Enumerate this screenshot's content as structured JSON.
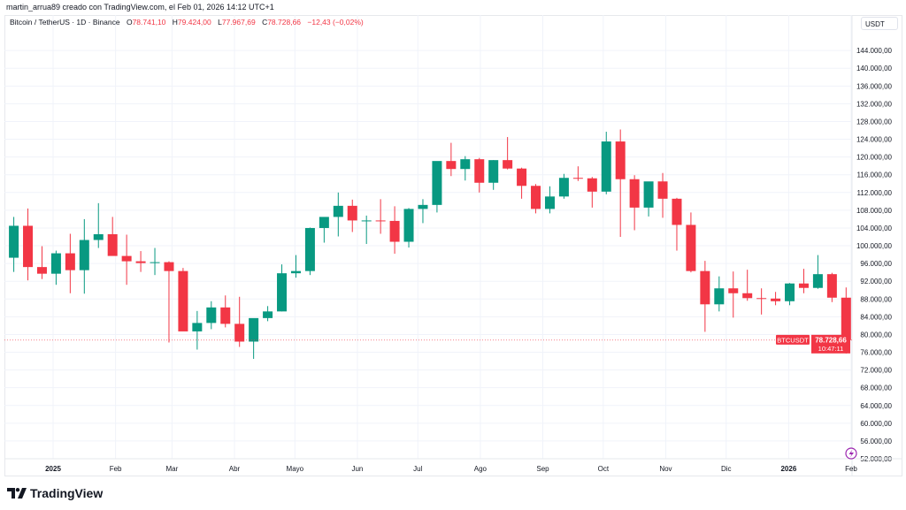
{
  "watermark": "martin_arrua89 creado con TradingView.com, el Feb 01, 2026 14:12 UTC+1",
  "legend": {
    "symbol": "Bitcoin / TetherUS · 1D · Binance",
    "o_label": "O",
    "o": "78.741,10",
    "h_label": "H",
    "h": "79.424,00",
    "l_label": "L",
    "l": "77.967,69",
    "c_label": "C",
    "c": "78.728,66",
    "change": "−12,43 (−0,02%)"
  },
  "price_axis": {
    "unit": "USDT"
  },
  "current": {
    "symbol": "BTCUSDT",
    "price_label": "78.728,66",
    "countdown": "10:47:11",
    "value": 78728.66
  },
  "brand": "TradingView",
  "colors": {
    "up": "#089981",
    "down": "#f23645",
    "grid": "#f0f3fa",
    "text": "#131722",
    "lightning": "#9c27b0"
  },
  "chart_data": {
    "type": "candlestick",
    "interval_shown": "1D",
    "ylim": [
      52000,
      152000
    ],
    "xlim": [
      "2024-12-07",
      "2026-02-06"
    ],
    "grid": true,
    "y_ticks": [
      52000,
      56000,
      60000,
      64000,
      68000,
      72000,
      76000,
      80000,
      84000,
      88000,
      92000,
      96000,
      100000,
      104000,
      108000,
      112000,
      116000,
      120000,
      124000,
      128000,
      132000,
      136000,
      140000,
      144000
    ],
    "y_tick_labels": [
      "52.000,00",
      "56.000,00",
      "60.000,00",
      "64.000,00",
      "68.000,00",
      "72.000,00",
      "76.000,00",
      "80.000,00",
      "84.000,00",
      "88.000,00",
      "92.000,00",
      "96.000,00",
      "100.000,00",
      "104.000,00",
      "108.000,00",
      "112.000,00",
      "116.000,00",
      "120.000,00",
      "124.000,00",
      "128.000,00",
      "132.000,00",
      "136.000,00",
      "140.000,00",
      "144.000,00"
    ],
    "x_ticks": [
      {
        "date": "2025-01-01",
        "label": "2025",
        "bold": true
      },
      {
        "date": "2025-02-01",
        "label": "Feb"
      },
      {
        "date": "2025-03-01",
        "label": "Mar"
      },
      {
        "date": "2025-04-01",
        "label": "Abr"
      },
      {
        "date": "2025-05-01",
        "label": "Mayo"
      },
      {
        "date": "2025-06-01",
        "label": "Jun"
      },
      {
        "date": "2025-07-01",
        "label": "Jul"
      },
      {
        "date": "2025-08-01",
        "label": "Ago"
      },
      {
        "date": "2025-09-01",
        "label": "Sep"
      },
      {
        "date": "2025-10-01",
        "label": "Oct"
      },
      {
        "date": "2025-11-01",
        "label": "Nov"
      },
      {
        "date": "2025-12-01",
        "label": "Dic"
      },
      {
        "date": "2026-01-01",
        "label": "2026",
        "bold": true
      },
      {
        "date": "2026-02-01",
        "label": "Feb"
      }
    ],
    "candles_note_fields": [
      "week_start",
      "open",
      "high",
      "low",
      "close"
    ],
    "candles": [
      [
        "2024-12-09",
        97300,
        106500,
        94100,
        104500
      ],
      [
        "2024-12-16",
        104500,
        108400,
        92200,
        95200
      ],
      [
        "2024-12-23",
        95200,
        99900,
        92500,
        93700
      ],
      [
        "2024-12-30",
        93700,
        98900,
        91200,
        98300
      ],
      [
        "2025-01-06",
        98300,
        102700,
        89300,
        94500
      ],
      [
        "2025-01-13",
        94500,
        106000,
        89200,
        101300
      ],
      [
        "2025-01-20",
        101300,
        109600,
        99500,
        102600
      ],
      [
        "2025-01-27",
        102600,
        106500,
        97800,
        97700
      ],
      [
        "2025-02-03",
        97700,
        102500,
        91200,
        96500
      ],
      [
        "2025-02-10",
        96500,
        98800,
        94100,
        96100
      ],
      [
        "2025-02-17",
        96100,
        99500,
        93400,
        96300
      ],
      [
        "2025-02-24",
        96300,
        96500,
        78200,
        94300
      ],
      [
        "2025-03-03",
        94300,
        95000,
        81500,
        80700
      ],
      [
        "2025-03-10",
        80700,
        85300,
        76600,
        82600
      ],
      [
        "2025-03-17",
        82600,
        87500,
        81200,
        86100
      ],
      [
        "2025-03-24",
        86100,
        88800,
        81600,
        82400
      ],
      [
        "2025-03-31",
        82400,
        88500,
        77200,
        78400
      ],
      [
        "2025-04-07",
        78400,
        83600,
        74500,
        83700
      ],
      [
        "2025-04-14",
        83700,
        86400,
        83000,
        85200
      ],
      [
        "2025-04-21",
        85200,
        95800,
        85200,
        93800
      ],
      [
        "2025-04-28",
        93800,
        97900,
        92800,
        94300
      ],
      [
        "2025-05-05",
        94300,
        104100,
        93400,
        104000
      ],
      [
        "2025-05-12",
        104000,
        105800,
        100700,
        106500
      ],
      [
        "2025-05-19",
        106500,
        112000,
        102100,
        109000
      ],
      [
        "2025-05-26",
        109000,
        110400,
        103100,
        105700
      ],
      [
        "2025-06-02",
        105700,
        106800,
        100400,
        105700
      ],
      [
        "2025-06-09",
        105700,
        110500,
        102700,
        105600
      ],
      [
        "2025-06-16",
        105600,
        108900,
        98200,
        100900
      ],
      [
        "2025-06-23",
        100900,
        108500,
        99600,
        108300
      ],
      [
        "2025-06-30",
        108300,
        110500,
        105100,
        109200
      ],
      [
        "2025-07-07",
        109200,
        119000,
        107500,
        119100
      ],
      [
        "2025-07-14",
        119100,
        123200,
        115700,
        117300
      ],
      [
        "2025-07-21",
        117300,
        120200,
        114700,
        119500
      ],
      [
        "2025-07-28",
        119500,
        119800,
        112000,
        114200
      ],
      [
        "2025-08-04",
        114200,
        119300,
        112600,
        119300
      ],
      [
        "2025-08-11",
        119300,
        124500,
        117200,
        117400
      ],
      [
        "2025-08-18",
        117400,
        117600,
        110600,
        113500
      ],
      [
        "2025-08-25",
        113500,
        113900,
        107300,
        108300
      ],
      [
        "2025-09-01",
        108300,
        113400,
        107300,
        111100
      ],
      [
        "2025-09-08",
        111100,
        116200,
        110600,
        115300
      ],
      [
        "2025-09-15",
        115300,
        117900,
        114600,
        115200
      ],
      [
        "2025-09-22",
        115200,
        115500,
        108600,
        112200
      ],
      [
        "2025-09-29",
        112200,
        125700,
        111600,
        123500
      ],
      [
        "2025-10-06",
        123500,
        126200,
        102000,
        115000
      ],
      [
        "2025-10-13",
        115000,
        115900,
        103500,
        108600
      ],
      [
        "2025-10-20",
        108600,
        114000,
        106600,
        114500
      ],
      [
        "2025-10-27",
        114500,
        116400,
        106300,
        110600
      ],
      [
        "2025-11-03",
        110600,
        110800,
        98900,
        104700
      ],
      [
        "2025-11-10",
        104700,
        107500,
        94000,
        94300
      ],
      [
        "2025-11-17",
        94300,
        96600,
        80600,
        86800
      ],
      [
        "2025-11-24",
        86800,
        93100,
        85200,
        90400
      ],
      [
        "2025-12-01",
        90400,
        94200,
        83800,
        89300
      ],
      [
        "2025-12-08",
        89300,
        94600,
        87600,
        88200
      ],
      [
        "2025-12-15",
        88200,
        90400,
        84500,
        88100
      ],
      [
        "2025-12-22",
        88100,
        89600,
        86600,
        87500
      ],
      [
        "2025-12-29",
        87500,
        91600,
        86600,
        91500
      ],
      [
        "2026-01-05",
        91500,
        94800,
        89300,
        90500
      ],
      [
        "2026-01-12",
        90500,
        97900,
        90300,
        93600
      ],
      [
        "2026-01-19",
        93600,
        93900,
        87300,
        88300
      ],
      [
        "2026-01-26",
        88300,
        90600,
        75700,
        78728.66
      ]
    ]
  }
}
